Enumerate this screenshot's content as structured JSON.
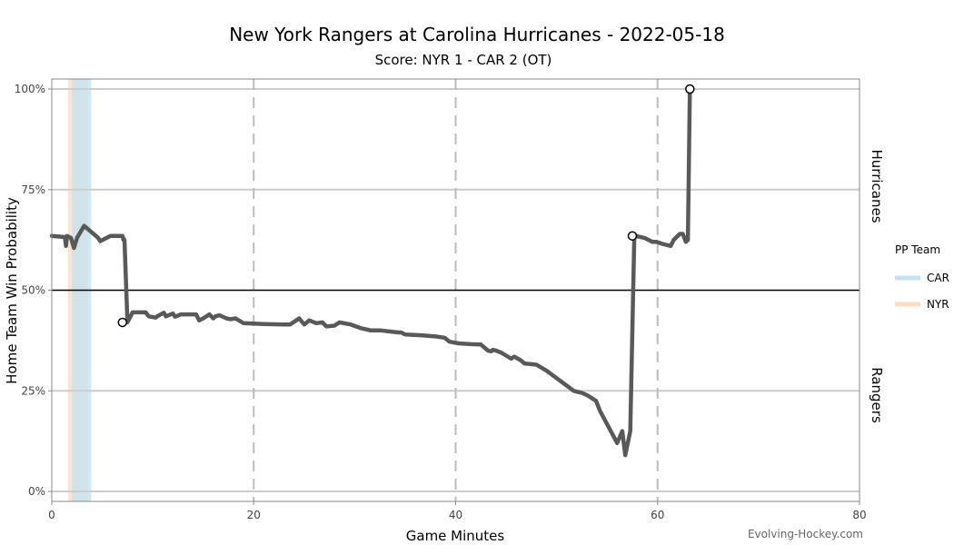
{
  "chart_data": {
    "type": "line",
    "title": "New York Rangers at Carolina Hurricanes - 2022-05-18",
    "subtitle": "Score: NYR 1 - CAR 2 (OT)",
    "xlabel": "Game Minutes",
    "ylabel": "Home Team Win Probability",
    "xlim": [
      0,
      80
    ],
    "ylim": [
      0,
      100
    ],
    "x_ticks": [
      0,
      20,
      40,
      60,
      80
    ],
    "y_ticks": [
      {
        "value": 0,
        "label": "0%"
      },
      {
        "value": 25,
        "label": "25%"
      },
      {
        "value": 50,
        "label": "50%"
      },
      {
        "value": 75,
        "label": "75%"
      },
      {
        "value": 100,
        "label": "100%"
      }
    ],
    "period_lines": [
      20,
      40,
      60
    ],
    "reference_line": 50,
    "side_labels": {
      "top": "Hurricanes",
      "bottom": "Rangers"
    },
    "legend": {
      "title": "PP Team",
      "placement": "right",
      "entries": [
        {
          "label": "CAR",
          "color": "#c6e2f0"
        },
        {
          "label": "NYR",
          "color": "#fbdcc4"
        }
      ]
    },
    "power_plays": [
      {
        "team": "NYR",
        "start": 1.6,
        "end": 3.5
      },
      {
        "team": "CAR",
        "start": 2.0,
        "end": 3.9
      }
    ],
    "series": [
      {
        "color": "#595959",
        "x": [
          0,
          1.3,
          1.4,
          1.5,
          1.9,
          2.2,
          2.5,
          3.2,
          4.6,
          4.8,
          5.8,
          5.9,
          7.0,
          7.1,
          7.2,
          7.5,
          8.0,
          9.3,
          9.6,
          10.3,
          10.5,
          11.1,
          11.3,
          12.0,
          12.2,
          12.6,
          12.8,
          13.1,
          14.3,
          14.6,
          15.0,
          15.6,
          16.0,
          16.2,
          16.6,
          17.3,
          17.7,
          18.2,
          19.0,
          21.0,
          23.0,
          23.6,
          24.5,
          25.0,
          25.5,
          26.2,
          26.8,
          27.2,
          28.0,
          28.5,
          29.6,
          30.7,
          31.1,
          31.6,
          32.6,
          34.3,
          34.6,
          35.0,
          36.6,
          38.0,
          38.9,
          39.4,
          40.3,
          41.5,
          42.5,
          43.2,
          43.5,
          43.7,
          44.0,
          44.5,
          44.7,
          45.5,
          45.8,
          46.5,
          46.8,
          48.0,
          49.0,
          51.7,
          52.5,
          53.1,
          53.9,
          54.3,
          56.0,
          56.5,
          56.8,
          57.3,
          57.7,
          57.8,
          58.7,
          59.5,
          59.9,
          60.5,
          61.3,
          61.6,
          62.2,
          62.5,
          62.8,
          63.0,
          63.2
        ],
        "y": [
          63.5,
          63.2,
          61.0,
          63.5,
          63.0,
          60.5,
          63.0,
          66.0,
          63.0,
          62.2,
          63.5,
          63.5,
          63.5,
          62.5,
          62.5,
          42.0,
          44.5,
          44.5,
          43.5,
          43.2,
          43.6,
          44.4,
          43.5,
          44.2,
          43.4,
          43.8,
          44.0,
          44.0,
          44.0,
          42.5,
          43.0,
          44.0,
          43.0,
          43.5,
          43.8,
          43.0,
          42.8,
          43.0,
          41.8,
          41.6,
          41.5,
          41.5,
          43.0,
          41.5,
          42.5,
          41.8,
          42.0,
          41.0,
          41.2,
          42.0,
          41.5,
          40.5,
          40.3,
          40.0,
          40.0,
          39.5,
          39.5,
          39.0,
          38.8,
          38.5,
          38.2,
          37.2,
          36.8,
          36.6,
          36.5,
          35.0,
          34.8,
          35.2,
          35.0,
          34.5,
          34.2,
          33.0,
          33.5,
          32.5,
          31.8,
          31.5,
          30.0,
          25.0,
          24.5,
          23.8,
          22.5,
          20.0,
          12.0,
          15.0,
          9.0,
          15.0,
          64.0,
          63.5,
          63.0,
          62.0,
          62.0,
          61.5,
          61.0,
          62.5,
          64.0,
          64.0,
          62.0,
          62.5,
          100
        ]
      }
    ],
    "markers": [
      {
        "x": 7.0,
        "y": 42
      },
      {
        "x": 57.5,
        "y": 63.5
      },
      {
        "x": 63.2,
        "y": 100
      }
    ]
  },
  "watermark": "Evolving-Hockey.com"
}
